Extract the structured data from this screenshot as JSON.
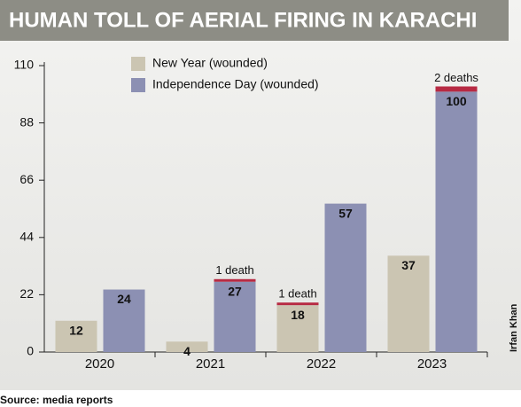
{
  "chart_data": {
    "type": "bar",
    "title": "HUMAN TOLL OF AERIAL FIRING IN KARACHI",
    "source": "Source: media reports",
    "credit": "Irfan Khan",
    "categories": [
      "2020",
      "2021",
      "2022",
      "2023"
    ],
    "series": [
      {
        "name": "New Year (wounded)",
        "color": "#cbc5b2",
        "values": [
          12,
          4,
          18,
          37
        ],
        "death_values": [
          null,
          null,
          1,
          null
        ],
        "death_labels": [
          null,
          null,
          "1 death",
          null
        ]
      },
      {
        "name": "Independence Day (wounded)",
        "color": "#8c90b3",
        "values": [
          24,
          27,
          57,
          100
        ],
        "death_values": [
          null,
          1,
          null,
          2
        ],
        "death_labels": [
          null,
          "1 death",
          null,
          "2 deaths"
        ]
      }
    ],
    "death_color": "#b72a43",
    "ylim": [
      0,
      110
    ],
    "yticks": [
      0,
      22,
      44,
      66,
      88,
      110
    ]
  }
}
